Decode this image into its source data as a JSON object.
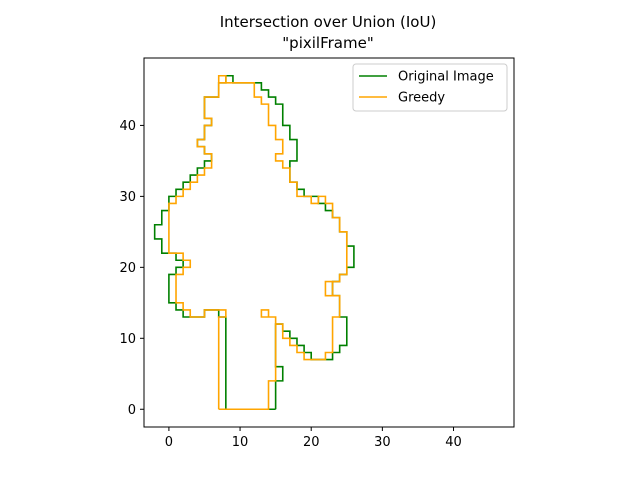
{
  "chart_data": {
    "type": "line",
    "title": "Intersection over Union (IoU)",
    "subtitle": "\"pixilFrame\"",
    "xlabel": "",
    "ylabel": "",
    "xlim": [
      -3.5,
      48.5
    ],
    "ylim": [
      -2.5,
      49.5
    ],
    "xticks": [
      0,
      10,
      20,
      30,
      40
    ],
    "yticks": [
      0,
      10,
      20,
      30,
      40
    ],
    "legend_position": "upper-right",
    "grid": false,
    "series": [
      {
        "name": "Original Image",
        "color": "#008000",
        "points": [
          [
            15,
            0
          ],
          [
            15,
            4
          ],
          [
            16,
            4
          ],
          [
            16,
            6
          ],
          [
            15,
            6
          ],
          [
            15,
            12
          ],
          [
            16,
            12
          ],
          [
            16,
            11
          ],
          [
            17,
            11
          ],
          [
            17,
            10
          ],
          [
            18,
            10
          ],
          [
            18,
            9
          ],
          [
            19,
            9
          ],
          [
            19,
            8
          ],
          [
            20,
            8
          ],
          [
            20,
            7
          ],
          [
            23,
            7
          ],
          [
            23,
            8
          ],
          [
            24,
            8
          ],
          [
            24,
            9
          ],
          [
            25,
            9
          ],
          [
            25,
            13
          ],
          [
            24,
            13
          ],
          [
            24,
            16
          ],
          [
            23,
            16
          ],
          [
            23,
            18
          ],
          [
            24,
            18
          ],
          [
            24,
            19
          ],
          [
            25,
            19
          ],
          [
            25,
            20
          ],
          [
            26,
            20
          ],
          [
            26,
            23
          ],
          [
            25,
            23
          ],
          [
            25,
            25
          ],
          [
            24,
            25
          ],
          [
            24,
            27
          ],
          [
            23,
            27
          ],
          [
            23,
            28
          ],
          [
            22,
            28
          ],
          [
            22,
            29
          ],
          [
            21,
            29
          ],
          [
            21,
            30
          ],
          [
            19,
            30
          ],
          [
            19,
            31
          ],
          [
            18,
            31
          ],
          [
            18,
            32
          ],
          [
            17,
            32
          ],
          [
            17,
            35
          ],
          [
            18,
            35
          ],
          [
            18,
            38
          ],
          [
            17,
            38
          ],
          [
            17,
            40
          ],
          [
            16,
            40
          ],
          [
            16,
            43
          ],
          [
            15,
            43
          ],
          [
            15,
            44
          ],
          [
            14,
            44
          ],
          [
            14,
            45
          ],
          [
            13,
            45
          ],
          [
            13,
            46
          ],
          [
            9,
            46
          ],
          [
            9,
            47
          ],
          [
            8,
            47
          ],
          [
            8,
            46
          ],
          [
            7,
            46
          ],
          [
            7,
            44
          ],
          [
            5,
            44
          ],
          [
            5,
            41
          ],
          [
            6,
            41
          ],
          [
            6,
            40
          ],
          [
            5,
            40
          ],
          [
            5,
            38
          ],
          [
            4,
            38
          ],
          [
            4,
            37
          ],
          [
            5,
            37
          ],
          [
            5,
            36
          ],
          [
            6,
            36
          ],
          [
            6,
            35
          ],
          [
            5,
            35
          ],
          [
            5,
            34
          ],
          [
            4,
            34
          ],
          [
            4,
            33
          ],
          [
            3,
            33
          ],
          [
            3,
            32
          ],
          [
            2,
            32
          ],
          [
            2,
            31
          ],
          [
            1,
            31
          ],
          [
            1,
            30
          ],
          [
            0,
            30
          ],
          [
            0,
            28
          ],
          [
            -1,
            28
          ],
          [
            -1,
            26
          ],
          [
            -2,
            26
          ],
          [
            -2,
            24
          ],
          [
            -1,
            24
          ],
          [
            -1,
            22
          ],
          [
            1,
            22
          ],
          [
            1,
            21
          ],
          [
            2,
            21
          ],
          [
            2,
            20
          ],
          [
            1,
            20
          ],
          [
            1,
            19
          ],
          [
            0,
            19
          ],
          [
            0,
            15
          ],
          [
            1,
            15
          ],
          [
            1,
            14
          ],
          [
            2,
            14
          ],
          [
            2,
            13
          ],
          [
            5,
            13
          ],
          [
            5,
            14
          ],
          [
            7,
            14
          ],
          [
            7,
            13
          ],
          [
            8,
            13
          ],
          [
            8,
            0
          ],
          [
            15,
            0
          ]
        ]
      },
      {
        "name": "Greedy",
        "color": "#FFA500",
        "points": [
          [
            7,
            0
          ],
          [
            14,
            0
          ],
          [
            14,
            4
          ],
          [
            15,
            4
          ],
          [
            15,
            13
          ],
          [
            14,
            13
          ],
          [
            14,
            14
          ],
          [
            13,
            14
          ],
          [
            13,
            13
          ],
          [
            15,
            13
          ],
          [
            15,
            12
          ],
          [
            16,
            12
          ],
          [
            16,
            10
          ],
          [
            17,
            10
          ],
          [
            17,
            9
          ],
          [
            18,
            9
          ],
          [
            18,
            8
          ],
          [
            19,
            8
          ],
          [
            19,
            7
          ],
          [
            22,
            7
          ],
          [
            22,
            8
          ],
          [
            23,
            8
          ],
          [
            23,
            13
          ],
          [
            24,
            13
          ],
          [
            24,
            16
          ],
          [
            23,
            16
          ],
          [
            23,
            18
          ],
          [
            22,
            18
          ],
          [
            22,
            16
          ],
          [
            23,
            16
          ],
          [
            23,
            18
          ],
          [
            24,
            18
          ],
          [
            24,
            19
          ],
          [
            25,
            19
          ],
          [
            25,
            25
          ],
          [
            24,
            25
          ],
          [
            24,
            27
          ],
          [
            23,
            27
          ],
          [
            23,
            29
          ],
          [
            22,
            29
          ],
          [
            22,
            30
          ],
          [
            21,
            30
          ],
          [
            21,
            29
          ],
          [
            20,
            29
          ],
          [
            20,
            30
          ],
          [
            18,
            30
          ],
          [
            18,
            32
          ],
          [
            17,
            32
          ],
          [
            17,
            34
          ],
          [
            16,
            34
          ],
          [
            16,
            35
          ],
          [
            15,
            35
          ],
          [
            15,
            36
          ],
          [
            16,
            36
          ],
          [
            16,
            38
          ],
          [
            15,
            38
          ],
          [
            15,
            40
          ],
          [
            14,
            40
          ],
          [
            14,
            43
          ],
          [
            13,
            43
          ],
          [
            13,
            44
          ],
          [
            12,
            44
          ],
          [
            12,
            46
          ],
          [
            7,
            46
          ],
          [
            7,
            47
          ],
          [
            8,
            47
          ],
          [
            8,
            46
          ],
          [
            7,
            46
          ],
          [
            7,
            44
          ],
          [
            5,
            44
          ],
          [
            5,
            41
          ],
          [
            6,
            41
          ],
          [
            6,
            40
          ],
          [
            5,
            40
          ],
          [
            5,
            38
          ],
          [
            4,
            38
          ],
          [
            4,
            37
          ],
          [
            5,
            37
          ],
          [
            5,
            36
          ],
          [
            6,
            36
          ],
          [
            6,
            34
          ],
          [
            5,
            34
          ],
          [
            5,
            33
          ],
          [
            4,
            33
          ],
          [
            4,
            32
          ],
          [
            3,
            32
          ],
          [
            3,
            31
          ],
          [
            2,
            31
          ],
          [
            2,
            30
          ],
          [
            1,
            30
          ],
          [
            1,
            29
          ],
          [
            0,
            29
          ],
          [
            0,
            22
          ],
          [
            2,
            22
          ],
          [
            2,
            21
          ],
          [
            3,
            21
          ],
          [
            3,
            20
          ],
          [
            2,
            20
          ],
          [
            2,
            19
          ],
          [
            1,
            19
          ],
          [
            1,
            15
          ],
          [
            2,
            15
          ],
          [
            2,
            14
          ],
          [
            3,
            14
          ],
          [
            3,
            13
          ],
          [
            5,
            13
          ],
          [
            5,
            14
          ],
          [
            8,
            14
          ],
          [
            8,
            13
          ],
          [
            7,
            13
          ],
          [
            7,
            0
          ]
        ]
      }
    ]
  }
}
